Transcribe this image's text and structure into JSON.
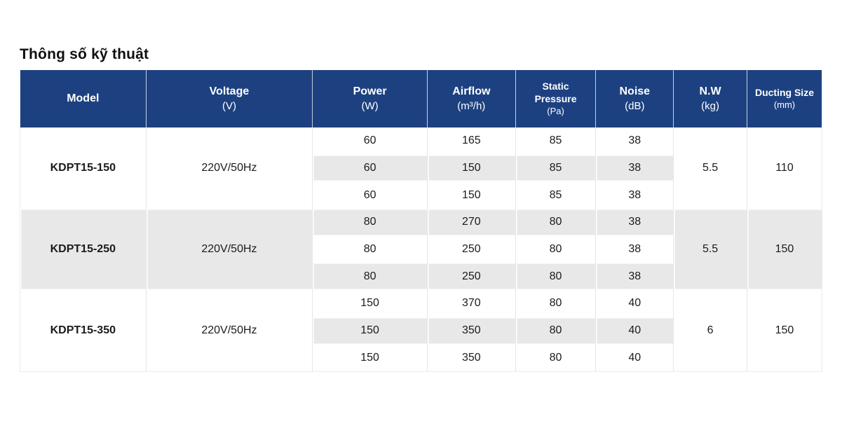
{
  "title": "Thông số kỹ thuật",
  "colors": {
    "header_bg": "#1d4180",
    "header_text": "#ffffff",
    "stripe_bg": "#e8e8e8",
    "grid_line": "#e6e6ea",
    "body_text": "#1b1b1b"
  },
  "table": {
    "columns": [
      {
        "label": "Model",
        "unit": ""
      },
      {
        "label": "Voltage",
        "unit": "(V)"
      },
      {
        "label": "Power",
        "unit": "(W)"
      },
      {
        "label": "Airflow",
        "unit": "(m³/h)"
      },
      {
        "label": "Static Pressure",
        "unit": "(Pa)"
      },
      {
        "label": "Noise",
        "unit": "(dB)"
      },
      {
        "label": "N.W",
        "unit": "(kg)"
      },
      {
        "label": "Ducting Size",
        "unit": "(mm)"
      }
    ],
    "groups": [
      {
        "model": "KDPT15-150",
        "voltage": "220V/50Hz",
        "net_weight": "5.5",
        "ducting_size": "110",
        "rows": [
          {
            "power": "60",
            "airflow": "165",
            "static_pressure": "85",
            "noise": "38"
          },
          {
            "power": "60",
            "airflow": "150",
            "static_pressure": "85",
            "noise": "38"
          },
          {
            "power": "60",
            "airflow": "150",
            "static_pressure": "85",
            "noise": "38"
          }
        ]
      },
      {
        "model": "KDPT15-250",
        "voltage": "220V/50Hz",
        "net_weight": "5.5",
        "ducting_size": "150",
        "rows": [
          {
            "power": "80",
            "airflow": "270",
            "static_pressure": "80",
            "noise": "38"
          },
          {
            "power": "80",
            "airflow": "250",
            "static_pressure": "80",
            "noise": "38"
          },
          {
            "power": "80",
            "airflow": "250",
            "static_pressure": "80",
            "noise": "38"
          }
        ]
      },
      {
        "model": "KDPT15-350",
        "voltage": "220V/50Hz",
        "net_weight": "6",
        "ducting_size": "150",
        "rows": [
          {
            "power": "150",
            "airflow": "370",
            "static_pressure": "80",
            "noise": "40"
          },
          {
            "power": "150",
            "airflow": "350",
            "static_pressure": "80",
            "noise": "40"
          },
          {
            "power": "150",
            "airflow": "350",
            "static_pressure": "80",
            "noise": "40"
          }
        ]
      }
    ]
  }
}
